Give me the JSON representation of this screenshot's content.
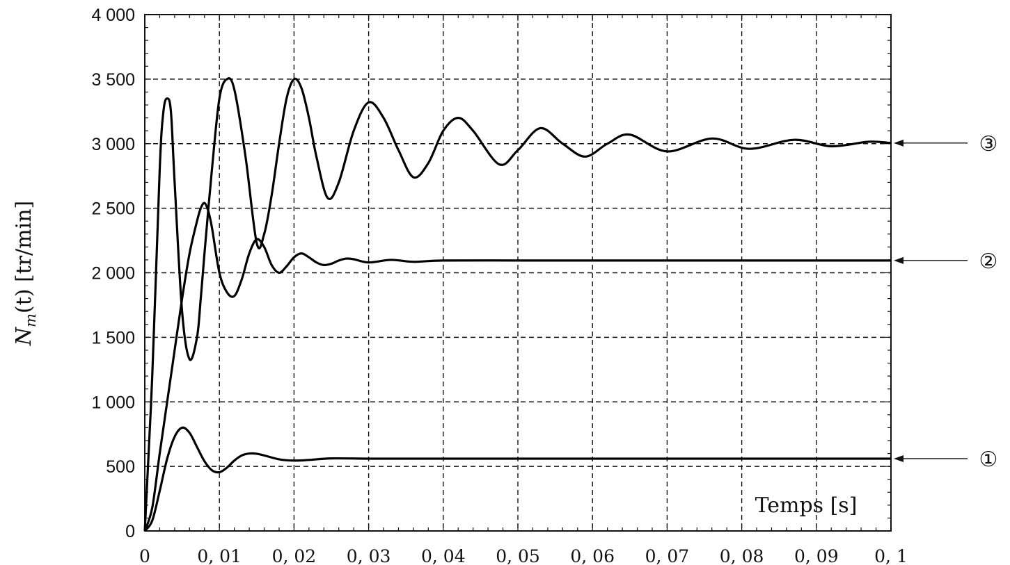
{
  "chart_data": {
    "type": "line",
    "title": "",
    "xlabel": "Temps [s]",
    "ylabel": "N_m(t) [tr/min]",
    "ylabel_parts": {
      "sym": "N",
      "sub": "m",
      "rest": "(t) [tr/min]"
    },
    "xlim": [
      0,
      0.1
    ],
    "ylim": [
      0,
      4000
    ],
    "grid": true,
    "x_ticks": [
      0,
      0.01,
      0.02,
      0.03,
      0.04,
      0.05,
      0.06,
      0.07,
      0.08,
      0.09,
      0.1
    ],
    "x_tick_labels": [
      "0",
      "0, 01",
      "0, 02",
      "0, 03",
      "0, 04",
      "0, 05",
      "0, 06",
      "0, 07",
      "0, 08",
      "0, 09",
      "0, 1"
    ],
    "y_ticks": [
      0,
      500,
      1000,
      1500,
      2000,
      2500,
      3000,
      3500,
      4000
    ],
    "y_tick_labels": [
      "0",
      "500",
      "1 000",
      "1 500",
      "2 000",
      "2 500",
      "3 000",
      "3 500",
      "4 000"
    ],
    "series": [
      {
        "marker": "①",
        "x": [
          0,
          0.001,
          0.002,
          0.003,
          0.004,
          0.005,
          0.006,
          0.007,
          0.008,
          0.009,
          0.01,
          0.011,
          0.012,
          0.013,
          0.014,
          0.015,
          0.016,
          0.018,
          0.02,
          0.022,
          0.025,
          0.03,
          0.035,
          0.04,
          0.05,
          0.06,
          0.07,
          0.08,
          0.09,
          0.1
        ],
        "y": [
          0,
          80,
          310,
          560,
          730,
          800,
          760,
          650,
          540,
          470,
          455,
          490,
          545,
          585,
          600,
          598,
          585,
          555,
          545,
          550,
          562,
          560,
          560,
          560,
          560,
          560,
          560,
          560,
          560,
          560
        ]
      },
      {
        "marker": "②",
        "x": [
          0,
          0.001,
          0.002,
          0.003,
          0.004,
          0.005,
          0.006,
          0.007,
          0.0075,
          0.008,
          0.0085,
          0.009,
          0.01,
          0.011,
          0.012,
          0.013,
          0.014,
          0.015,
          0.016,
          0.017,
          0.018,
          0.019,
          0.02,
          0.021,
          0.022,
          0.023,
          0.024,
          0.025,
          0.026,
          0.027,
          0.028,
          0.03,
          0.033,
          0.036,
          0.04,
          0.05,
          0.06,
          0.07,
          0.08,
          0.09,
          0.1
        ],
        "y": [
          0,
          180,
          600,
          1000,
          1400,
          1800,
          2150,
          2400,
          2500,
          2540,
          2480,
          2350,
          2000,
          1850,
          1820,
          1950,
          2150,
          2260,
          2200,
          2060,
          2000,
          2050,
          2120,
          2150,
          2120,
          2080,
          2060,
          2070,
          2095,
          2110,
          2105,
          2080,
          2100,
          2085,
          2095,
          2095,
          2095,
          2095,
          2095,
          2095,
          2095
        ]
      },
      {
        "marker": "③",
        "x": [
          0,
          0.001,
          0.002,
          0.0025,
          0.003,
          0.0035,
          0.004,
          0.005,
          0.006,
          0.007,
          0.0075,
          0.008,
          0.009,
          0.01,
          0.011,
          0.012,
          0.0135,
          0.015,
          0.016,
          0.017,
          0.018,
          0.019,
          0.02,
          0.021,
          0.022,
          0.023,
          0.0245,
          0.026,
          0.028,
          0.03,
          0.032,
          0.034,
          0.036,
          0.038,
          0.04,
          0.042,
          0.044,
          0.0475,
          0.05,
          0.053,
          0.056,
          0.059,
          0.062,
          0.065,
          0.07,
          0.076,
          0.081,
          0.087,
          0.092,
          0.097,
          0.1
        ],
        "y": [
          0,
          1200,
          2800,
          3250,
          3350,
          3250,
          2700,
          1700,
          1330,
          1500,
          1800,
          2150,
          2800,
          3350,
          3500,
          3420,
          2900,
          2230,
          2300,
          2600,
          3000,
          3350,
          3500,
          3430,
          3200,
          2900,
          2580,
          2700,
          3100,
          3320,
          3200,
          2950,
          2740,
          2850,
          3100,
          3200,
          3100,
          2840,
          2950,
          3120,
          3000,
          2900,
          3000,
          3070,
          2940,
          3040,
          2960,
          3030,
          2980,
          3015,
          3005
        ]
      }
    ]
  }
}
